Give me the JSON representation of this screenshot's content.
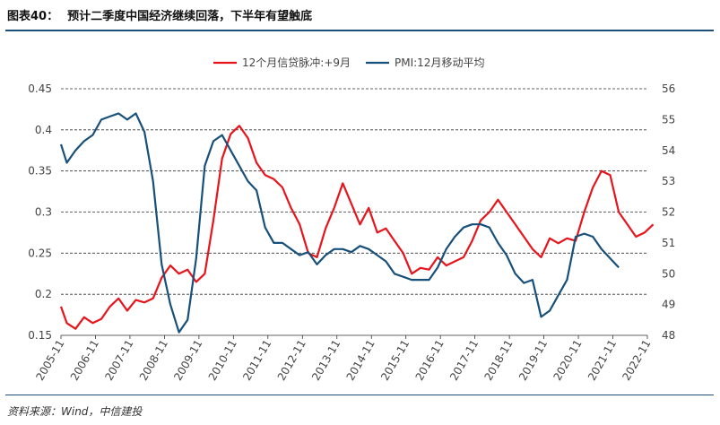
{
  "header": {
    "figure_no": "图表40：",
    "title": "预计二季度中国经济继续回落，下半年有望触底"
  },
  "footer": {
    "source": "资料来源：Wind，中信建投"
  },
  "colors": {
    "credit": "#e8141b",
    "pmi": "#17507a",
    "rule": "#1f4e79",
    "grid": "#333333"
  },
  "chart_data": {
    "type": "line",
    "legend_position": "top-center",
    "grid": "horizontal-dashed",
    "x_ticks": [
      "2005-11",
      "2006-11",
      "2007-11",
      "2008-11",
      "2009-11",
      "2010-11",
      "2011-11",
      "2012-11",
      "2013-11",
      "2014-11",
      "2015-11",
      "2016-11",
      "2017-11",
      "2018-11",
      "2019-11",
      "2020-11",
      "2021-11",
      "2022-11"
    ],
    "y_left": {
      "ticks": [
        "0.45",
        "0.4",
        "0.35",
        "0.3",
        "0.25",
        "0.2",
        "0.15"
      ],
      "range": [
        0.15,
        0.45
      ]
    },
    "y_right": {
      "ticks": [
        "56",
        "55",
        "54",
        "53",
        "52",
        "51",
        "50",
        "49",
        "48"
      ],
      "range": [
        48,
        56
      ]
    },
    "series": [
      {
        "name": "12个月信贷脉冲:+9月",
        "axis": "left",
        "points": [
          [
            2005.83,
            0.185
          ],
          [
            2006.0,
            0.165
          ],
          [
            2006.25,
            0.158
          ],
          [
            2006.5,
            0.172
          ],
          [
            2006.75,
            0.165
          ],
          [
            2007.0,
            0.17
          ],
          [
            2007.25,
            0.185
          ],
          [
            2007.5,
            0.195
          ],
          [
            2007.75,
            0.18
          ],
          [
            2008.0,
            0.193
          ],
          [
            2008.25,
            0.19
          ],
          [
            2008.5,
            0.195
          ],
          [
            2008.75,
            0.22
          ],
          [
            2009.0,
            0.235
          ],
          [
            2009.25,
            0.225
          ],
          [
            2009.5,
            0.23
          ],
          [
            2009.75,
            0.215
          ],
          [
            2010.0,
            0.225
          ],
          [
            2010.25,
            0.29
          ],
          [
            2010.5,
            0.365
          ],
          [
            2010.75,
            0.395
          ],
          [
            2011.0,
            0.405
          ],
          [
            2011.25,
            0.39
          ],
          [
            2011.5,
            0.36
          ],
          [
            2011.75,
            0.345
          ],
          [
            2012.0,
            0.34
          ],
          [
            2012.25,
            0.33
          ],
          [
            2012.5,
            0.305
          ],
          [
            2012.75,
            0.285
          ],
          [
            2013.0,
            0.25
          ],
          [
            2013.25,
            0.245
          ],
          [
            2013.5,
            0.28
          ],
          [
            2013.75,
            0.305
          ],
          [
            2014.0,
            0.335
          ],
          [
            2014.25,
            0.31
          ],
          [
            2014.5,
            0.285
          ],
          [
            2014.75,
            0.305
          ],
          [
            2015.0,
            0.275
          ],
          [
            2015.25,
            0.28
          ],
          [
            2015.5,
            0.265
          ],
          [
            2015.75,
            0.25
          ],
          [
            2016.0,
            0.225
          ],
          [
            2016.25,
            0.232
          ],
          [
            2016.5,
            0.23
          ],
          [
            2016.75,
            0.245
          ],
          [
            2017.0,
            0.235
          ],
          [
            2017.25,
            0.24
          ],
          [
            2017.5,
            0.245
          ],
          [
            2017.75,
            0.265
          ],
          [
            2018.0,
            0.29
          ],
          [
            2018.25,
            0.3
          ],
          [
            2018.5,
            0.315
          ],
          [
            2018.75,
            0.3
          ],
          [
            2019.0,
            0.285
          ],
          [
            2019.25,
            0.27
          ],
          [
            2019.5,
            0.255
          ],
          [
            2019.75,
            0.245
          ],
          [
            2020.0,
            0.268
          ],
          [
            2020.25,
            0.262
          ],
          [
            2020.5,
            0.268
          ],
          [
            2020.75,
            0.265
          ],
          [
            2021.0,
            0.3
          ],
          [
            2021.25,
            0.33
          ],
          [
            2021.5,
            0.35
          ],
          [
            2021.75,
            0.345
          ],
          [
            2022.0,
            0.3
          ],
          [
            2022.25,
            0.285
          ],
          [
            2022.5,
            0.27
          ],
          [
            2022.75,
            0.275
          ],
          [
            2023.0,
            0.285
          ]
        ]
      },
      {
        "name": "PMI:12月移动平均",
        "axis": "right",
        "points": [
          [
            2005.83,
            54.2
          ],
          [
            2006.0,
            53.6
          ],
          [
            2006.25,
            54.0
          ],
          [
            2006.5,
            54.3
          ],
          [
            2006.75,
            54.5
          ],
          [
            2007.0,
            55.0
          ],
          [
            2007.25,
            55.1
          ],
          [
            2007.5,
            55.2
          ],
          [
            2007.75,
            55.0
          ],
          [
            2008.0,
            55.2
          ],
          [
            2008.25,
            54.6
          ],
          [
            2008.5,
            53.0
          ],
          [
            2008.75,
            50.3
          ],
          [
            2009.0,
            49.0
          ],
          [
            2009.25,
            48.1
          ],
          [
            2009.5,
            48.5
          ],
          [
            2009.75,
            50.5
          ],
          [
            2010.0,
            53.5
          ],
          [
            2010.25,
            54.3
          ],
          [
            2010.5,
            54.5
          ],
          [
            2010.75,
            54.0
          ],
          [
            2011.0,
            53.5
          ],
          [
            2011.25,
            53.0
          ],
          [
            2011.5,
            52.7
          ],
          [
            2011.75,
            51.5
          ],
          [
            2012.0,
            51.0
          ],
          [
            2012.25,
            51.0
          ],
          [
            2012.5,
            50.8
          ],
          [
            2012.75,
            50.6
          ],
          [
            2013.0,
            50.7
          ],
          [
            2013.25,
            50.3
          ],
          [
            2013.5,
            50.6
          ],
          [
            2013.75,
            50.8
          ],
          [
            2014.0,
            50.8
          ],
          [
            2014.25,
            50.7
          ],
          [
            2014.5,
            50.9
          ],
          [
            2014.75,
            50.8
          ],
          [
            2015.0,
            50.6
          ],
          [
            2015.25,
            50.4
          ],
          [
            2015.5,
            50.0
          ],
          [
            2015.75,
            49.9
          ],
          [
            2016.0,
            49.8
          ],
          [
            2016.25,
            49.8
          ],
          [
            2016.5,
            49.8
          ],
          [
            2016.75,
            50.2
          ],
          [
            2017.0,
            50.8
          ],
          [
            2017.25,
            51.2
          ],
          [
            2017.5,
            51.5
          ],
          [
            2017.75,
            51.6
          ],
          [
            2018.0,
            51.6
          ],
          [
            2018.25,
            51.5
          ],
          [
            2018.5,
            51.0
          ],
          [
            2018.75,
            50.6
          ],
          [
            2019.0,
            50.0
          ],
          [
            2019.25,
            49.7
          ],
          [
            2019.5,
            49.8
          ],
          [
            2019.75,
            48.6
          ],
          [
            2020.0,
            48.8
          ],
          [
            2020.25,
            49.3
          ],
          [
            2020.5,
            49.8
          ],
          [
            2020.75,
            51.2
          ],
          [
            2021.0,
            51.3
          ],
          [
            2021.25,
            51.2
          ],
          [
            2021.5,
            50.8
          ],
          [
            2021.75,
            50.5
          ],
          [
            2022.0,
            50.2
          ]
        ]
      }
    ]
  }
}
